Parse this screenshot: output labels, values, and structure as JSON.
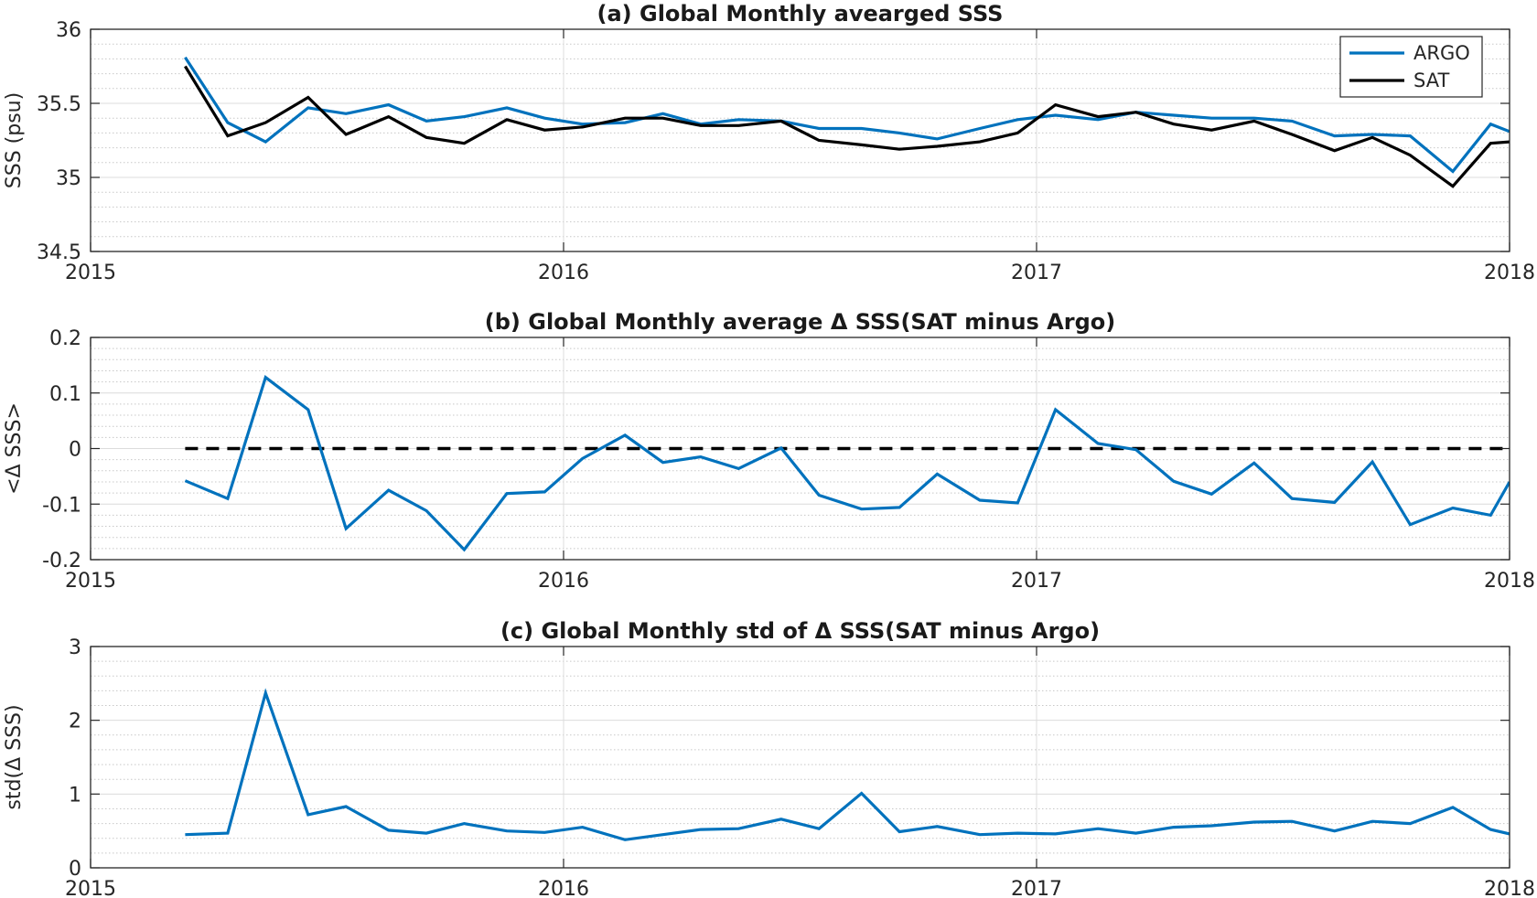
{
  "chart_data": [
    {
      "type": "line",
      "title": "(a) Global Monthly avearged SSS",
      "xlabel": "",
      "ylabel": "SSS (psu)",
      "xlim": [
        2015,
        2018
      ],
      "ylim": [
        34.5,
        36
      ],
      "xticks": [
        "2015",
        "2016",
        "2017",
        "2018"
      ],
      "yticks": [
        "34.5",
        "35",
        "35.5",
        "36"
      ],
      "grid": true,
      "legend": "top-right",
      "x": [
        2015.2,
        2015.29,
        2015.37,
        2015.46,
        2015.54,
        2015.63,
        2015.71,
        2015.79,
        2015.88,
        2015.96,
        2016.04,
        2016.13,
        2016.21,
        2016.29,
        2016.37,
        2016.46,
        2016.54,
        2016.63,
        2016.71,
        2016.79,
        2016.88,
        2016.96,
        2017.04,
        2017.13,
        2017.21,
        2017.29,
        2017.37,
        2017.46,
        2017.54,
        2017.63,
        2017.71,
        2017.79,
        2017.88,
        2017.96,
        2018.0
      ],
      "series": [
        {
          "name": "ARGO",
          "color": "#0072BD",
          "values": [
            35.81,
            35.37,
            35.24,
            35.47,
            35.43,
            35.49,
            35.38,
            35.41,
            35.47,
            35.4,
            35.36,
            35.37,
            35.43,
            35.36,
            35.39,
            35.38,
            35.33,
            35.33,
            35.3,
            35.26,
            35.33,
            35.39,
            35.42,
            35.39,
            35.44,
            35.42,
            35.4,
            35.4,
            35.38,
            35.28,
            35.29,
            35.28,
            35.04,
            35.36,
            35.31
          ]
        },
        {
          "name": "SAT",
          "color": "#000000",
          "values": [
            35.75,
            35.28,
            35.37,
            35.54,
            35.29,
            35.41,
            35.27,
            35.23,
            35.39,
            35.32,
            35.34,
            35.4,
            35.4,
            35.35,
            35.35,
            35.38,
            35.25,
            35.22,
            35.19,
            35.21,
            35.24,
            35.3,
            35.49,
            35.41,
            35.44,
            35.36,
            35.32,
            35.38,
            35.29,
            35.18,
            35.27,
            35.15,
            34.94,
            35.23,
            35.24
          ]
        }
      ]
    },
    {
      "type": "line",
      "title": "(b) Global Monthly average Δ SSS(SAT minus Argo)",
      "xlabel": "",
      "ylabel": "<Δ SSS>",
      "xlim": [
        2015,
        2018
      ],
      "ylim": [
        -0.2,
        0.2
      ],
      "xticks": [
        "2015",
        "2016",
        "2017",
        "2018"
      ],
      "yticks": [
        "-0.2",
        "-0.1",
        "0",
        "0.1",
        "0.2"
      ],
      "grid": true,
      "reference_line": {
        "y": 0,
        "style": "dashed",
        "color": "#000000",
        "from_x": 2015.2,
        "to_x": 2018.0
      },
      "x": [
        2015.2,
        2015.29,
        2015.37,
        2015.46,
        2015.54,
        2015.63,
        2015.71,
        2015.79,
        2015.88,
        2015.96,
        2016.04,
        2016.13,
        2016.21,
        2016.29,
        2016.37,
        2016.46,
        2016.54,
        2016.63,
        2016.71,
        2016.79,
        2016.88,
        2016.96,
        2017.04,
        2017.13,
        2017.21,
        2017.29,
        2017.37,
        2017.46,
        2017.54,
        2017.63,
        2017.71,
        2017.79,
        2017.88,
        2017.96,
        2018.0
      ],
      "series": [
        {
          "color": "#0072BD",
          "values": [
            -0.058,
            -0.09,
            0.128,
            0.07,
            -0.144,
            -0.075,
            -0.112,
            -0.182,
            -0.081,
            -0.078,
            -0.018,
            0.024,
            -0.025,
            -0.015,
            -0.036,
            0.001,
            -0.084,
            -0.109,
            -0.106,
            -0.046,
            -0.093,
            -0.098,
            0.07,
            0.009,
            -0.002,
            -0.059,
            -0.082,
            -0.026,
            -0.09,
            -0.097,
            -0.024,
            -0.137,
            -0.107,
            -0.12,
            -0.06
          ]
        }
      ]
    },
    {
      "type": "line",
      "title": "(c) Global Monthly std of Δ SSS(SAT minus Argo)",
      "xlabel": "",
      "ylabel": "std(Δ SSS)",
      "xlim": [
        2015,
        2018
      ],
      "ylim": [
        0,
        3
      ],
      "xticks": [
        "2015",
        "2016",
        "2017",
        "2018"
      ],
      "yticks": [
        "0",
        "1",
        "2",
        "3"
      ],
      "grid": true,
      "x": [
        2015.2,
        2015.29,
        2015.37,
        2015.46,
        2015.54,
        2015.63,
        2015.71,
        2015.79,
        2015.88,
        2015.96,
        2016.04,
        2016.13,
        2016.21,
        2016.29,
        2016.37,
        2016.46,
        2016.54,
        2016.63,
        2016.71,
        2016.79,
        2016.88,
        2016.96,
        2017.04,
        2017.13,
        2017.21,
        2017.29,
        2017.37,
        2017.46,
        2017.54,
        2017.63,
        2017.71,
        2017.79,
        2017.88,
        2017.96,
        2018.0
      ],
      "series": [
        {
          "color": "#0072BD",
          "values": [
            0.45,
            0.47,
            2.37,
            0.72,
            0.83,
            0.51,
            0.47,
            0.6,
            0.5,
            0.48,
            0.55,
            0.38,
            0.45,
            0.52,
            0.53,
            0.66,
            0.53,
            1.01,
            0.49,
            0.56,
            0.45,
            0.47,
            0.46,
            0.53,
            0.47,
            0.55,
            0.57,
            0.62,
            0.63,
            0.5,
            0.63,
            0.6,
            0.82,
            0.52,
            0.46
          ]
        }
      ]
    }
  ]
}
